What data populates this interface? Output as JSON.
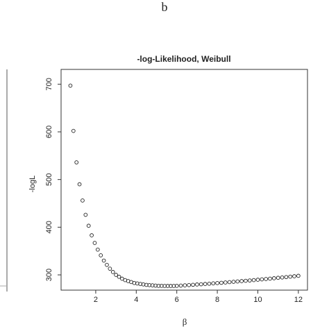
{
  "panel_label": "b",
  "chart_data": {
    "type": "scatter",
    "title": "-log-Likelihood, Weibull",
    "x_label": "β",
    "y_label": "-logL",
    "x": [
      0.75,
      0.9,
      1.05,
      1.2,
      1.35,
      1.5,
      1.65,
      1.8,
      1.95,
      2.1,
      2.25,
      2.4,
      2.55,
      2.7,
      2.85,
      3.0,
      3.15,
      3.3,
      3.45,
      3.6,
      3.75,
      3.9,
      4.05,
      4.2,
      4.35,
      4.5,
      4.65,
      4.8,
      4.95,
      5.1,
      5.25,
      5.4,
      5.55,
      5.7,
      5.85,
      6.0,
      6.2,
      6.4,
      6.6,
      6.8,
      7.0,
      7.2,
      7.4,
      7.6,
      7.8,
      8.0,
      8.2,
      8.4,
      8.6,
      8.8,
      9.0,
      9.2,
      9.4,
      9.6,
      9.8,
      10.0,
      10.2,
      10.4,
      10.6,
      10.8,
      11.0,
      11.2,
      11.4,
      11.6,
      11.8,
      12.0
    ],
    "values": [
      697,
      602,
      536,
      490,
      456,
      426,
      403,
      383,
      367,
      353,
      341,
      330,
      321,
      313,
      306,
      300,
      296,
      292,
      289,
      287,
      285,
      283,
      282,
      281,
      280,
      279,
      278.5,
      278,
      277.5,
      277,
      277,
      276.8,
      276.7,
      276.7,
      276.8,
      277,
      277.5,
      278.1,
      278.6,
      279.2,
      279.8,
      280.3,
      280.9,
      281.5,
      282.2,
      282.8,
      283.4,
      284.1,
      284.8,
      285.5,
      286.2,
      286.9,
      287.6,
      288.3,
      289.0,
      289.8,
      290.6,
      291.3,
      292.1,
      292.9,
      293.8,
      294.6,
      295.4,
      296.3,
      297.1,
      298.0
    ],
    "color": "#222222",
    "xlim": [
      0.29,
      12.45
    ],
    "ylim": [
      268,
      731
    ],
    "xticks": [
      2,
      4,
      6,
      8,
      10,
      12
    ],
    "yticks": [
      300,
      400,
      500,
      600,
      700
    ]
  }
}
